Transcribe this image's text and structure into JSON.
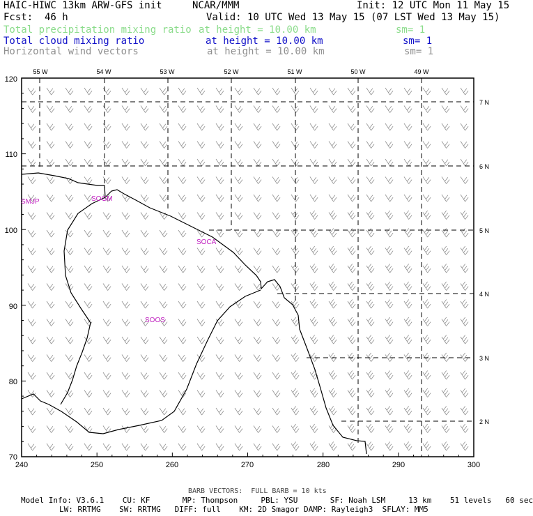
{
  "header": {
    "model_title": "HAIC-HIWC 13km ARW-GFS init",
    "org": "NCAR/MMM",
    "init": "Init: 12 UTC Mon 11 May 15",
    "fcst_label": "Fcst:",
    "fcst_value": "46 h",
    "valid": "Valid: 10 UTC Wed 13 May 15 (07 LST Wed 13 May 15)",
    "fields": [
      {
        "name": "Total precipitation mixing ratio",
        "level": "at height = 10.00 km",
        "sm": "sm= 1",
        "color": "#8bdc8b"
      },
      {
        "name": "Total cloud mixing ratio",
        "level": "at height = 10.00 km",
        "sm": "sm= 1",
        "color": "#1010c8"
      },
      {
        "name": "Horizontal wind vectors",
        "level": "at height = 10.00 km",
        "sm": "sm= 1",
        "color": "#909090"
      }
    ]
  },
  "map": {
    "top_lon_labels": [
      "55 W",
      "54 W",
      "53 W",
      "52 W",
      "51 W",
      "50 W",
      "49 W"
    ],
    "right_lat_labels": [
      "7 N",
      "6 N",
      "5 N",
      "4 N",
      "3 N",
      "2 N"
    ],
    "x_tick_labels": [
      "240",
      "250",
      "260",
      "270",
      "280",
      "290",
      "300"
    ],
    "y_tick_labels": [
      "70",
      "80",
      "90",
      "100",
      "110",
      "120"
    ],
    "station_labels": [
      "SMJP",
      "SOGM",
      "SOCA",
      "SOOS"
    ],
    "barb_color": "#909090",
    "station_color": "#c020c0"
  },
  "footer": {
    "barb_note": "BARB VECTORS:  FULL BARB = 10 kts",
    "line1": "Model Info: V3.6.1    CU: KF       MP: Thompson     PBL: YSU       SF: Noah LSM     13 km    51 levels   60 sec",
    "line2": "LW: RRTMG    SW: RRTMG   DIFF: full    KM: 2D Smagor DAMP: Rayleigh3  SFLAY: MM5"
  }
}
